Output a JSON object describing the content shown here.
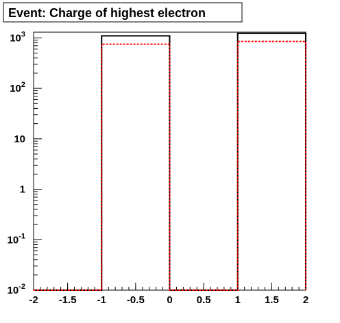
{
  "chart_data": {
    "type": "histogram",
    "title": "Event: Charge of highest electron",
    "xlabel": "",
    "ylabel": "",
    "xlim": [
      -2,
      2
    ],
    "ylim": [
      0.01,
      1300
    ],
    "yscale": "log",
    "x_ticks": [
      "-2",
      "-1.5",
      "-1",
      "-0.5",
      "0",
      "0.5",
      "1",
      "1.5",
      "2"
    ],
    "y_ticks": [
      {
        "value": 0.01,
        "base": "10",
        "exp": "-2"
      },
      {
        "value": 0.1,
        "base": "10",
        "exp": "-1"
      },
      {
        "value": 1,
        "base": "1",
        "exp": ""
      },
      {
        "value": 10,
        "base": "10",
        "exp": ""
      },
      {
        "value": 100,
        "base": "10",
        "exp": "2"
      },
      {
        "value": 1000,
        "base": "10",
        "exp": "3"
      }
    ],
    "bin_edges": [
      -2,
      -1,
      0,
      1,
      2
    ],
    "series": [
      {
        "style": "solid",
        "color": "#000000",
        "values": [
          0,
          1100,
          0,
          1230
        ]
      },
      {
        "style": "dashed",
        "color": "#ff0000",
        "values": [
          0,
          750,
          0,
          850
        ]
      }
    ],
    "grid": false,
    "legend": "none"
  }
}
